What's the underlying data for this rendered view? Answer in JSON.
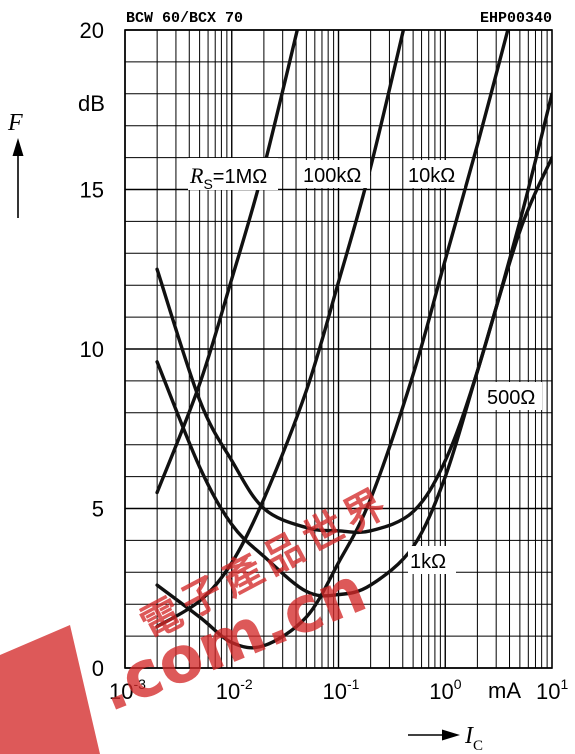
{
  "header": {
    "left": "BCW 60/BCX 70",
    "right": "EHP00340"
  },
  "chart_data": {
    "type": "line",
    "x_scale": "log",
    "xlim": [
      0.001,
      10
    ],
    "ylim": [
      0,
      20
    ],
    "grid": true,
    "ylabel": "F",
    "yunit": "dB",
    "xlabel_symbol": "I",
    "xlabel_subscript": "C",
    "xunit": "mA",
    "y_ticks": [
      {
        "value": 0,
        "label": "0"
      },
      {
        "value": 5,
        "label": "5"
      },
      {
        "value": 10,
        "label": "10"
      },
      {
        "value": 15,
        "label": "15"
      },
      {
        "value": 20,
        "label": "20"
      }
    ],
    "x_ticks": [
      {
        "value": 0.001,
        "base": "10",
        "exp": "-3"
      },
      {
        "value": 0.01,
        "base": "10",
        "exp": "-2"
      },
      {
        "value": 0.1,
        "base": "10",
        "exp": "-1"
      },
      {
        "value": 1,
        "base": "10",
        "exp": "0"
      },
      {
        "value": 10,
        "base": "10",
        "exp": "1"
      }
    ],
    "series": [
      {
        "name": "RS=1MΩ",
        "label_parts": {
          "sym": "R",
          "sub": "S",
          "val": "=1MΩ"
        },
        "points": [
          [
            0.002,
            5.5
          ],
          [
            0.005,
            8.9
          ],
          [
            0.01,
            12.2
          ],
          [
            0.02,
            15.7
          ],
          [
            0.05,
            21.2
          ]
        ]
      },
      {
        "name": "100kΩ",
        "points": [
          [
            0.002,
            1.3
          ],
          [
            0.005,
            2.1
          ],
          [
            0.01,
            3.3
          ],
          [
            0.02,
            5.3
          ],
          [
            0.05,
            8.7
          ],
          [
            0.1,
            12.1
          ],
          [
            0.2,
            15.7
          ],
          [
            0.5,
            21.3
          ]
        ]
      },
      {
        "name": "10kΩ",
        "points": [
          [
            0.002,
            2.6
          ],
          [
            0.005,
            1.6
          ],
          [
            0.01,
            0.8
          ],
          [
            0.02,
            0.7
          ],
          [
            0.05,
            1.6
          ],
          [
            0.1,
            3.3
          ],
          [
            0.2,
            5.3
          ],
          [
            0.5,
            9.2
          ],
          [
            1,
            12.8
          ],
          [
            2,
            16.4
          ],
          [
            4,
            20.2
          ]
        ]
      },
      {
        "name": "1kΩ",
        "points": [
          [
            0.002,
            9.6
          ],
          [
            0.005,
            6.3
          ],
          [
            0.01,
            4.5
          ],
          [
            0.02,
            3.5
          ],
          [
            0.05,
            2.4
          ],
          [
            0.1,
            2.3
          ],
          [
            0.2,
            2.6
          ],
          [
            0.5,
            3.8
          ],
          [
            1,
            6.0
          ],
          [
            2,
            9.3
          ],
          [
            5,
            13.7
          ],
          [
            10,
            16.0
          ]
        ]
      },
      {
        "name": "500Ω",
        "points": [
          [
            0.002,
            12.5
          ],
          [
            0.005,
            8.4
          ],
          [
            0.01,
            6.5
          ],
          [
            0.02,
            5.0
          ],
          [
            0.05,
            4.4
          ],
          [
            0.1,
            4.3
          ],
          [
            0.2,
            4.3
          ],
          [
            0.5,
            4.9
          ],
          [
            1,
            6.5
          ],
          [
            2,
            9.3
          ],
          [
            5,
            14.0
          ],
          [
            10,
            18.0
          ]
        ]
      }
    ]
  },
  "watermark": {
    "cjk": "電子產品世界",
    "domain": ".com.cn"
  }
}
